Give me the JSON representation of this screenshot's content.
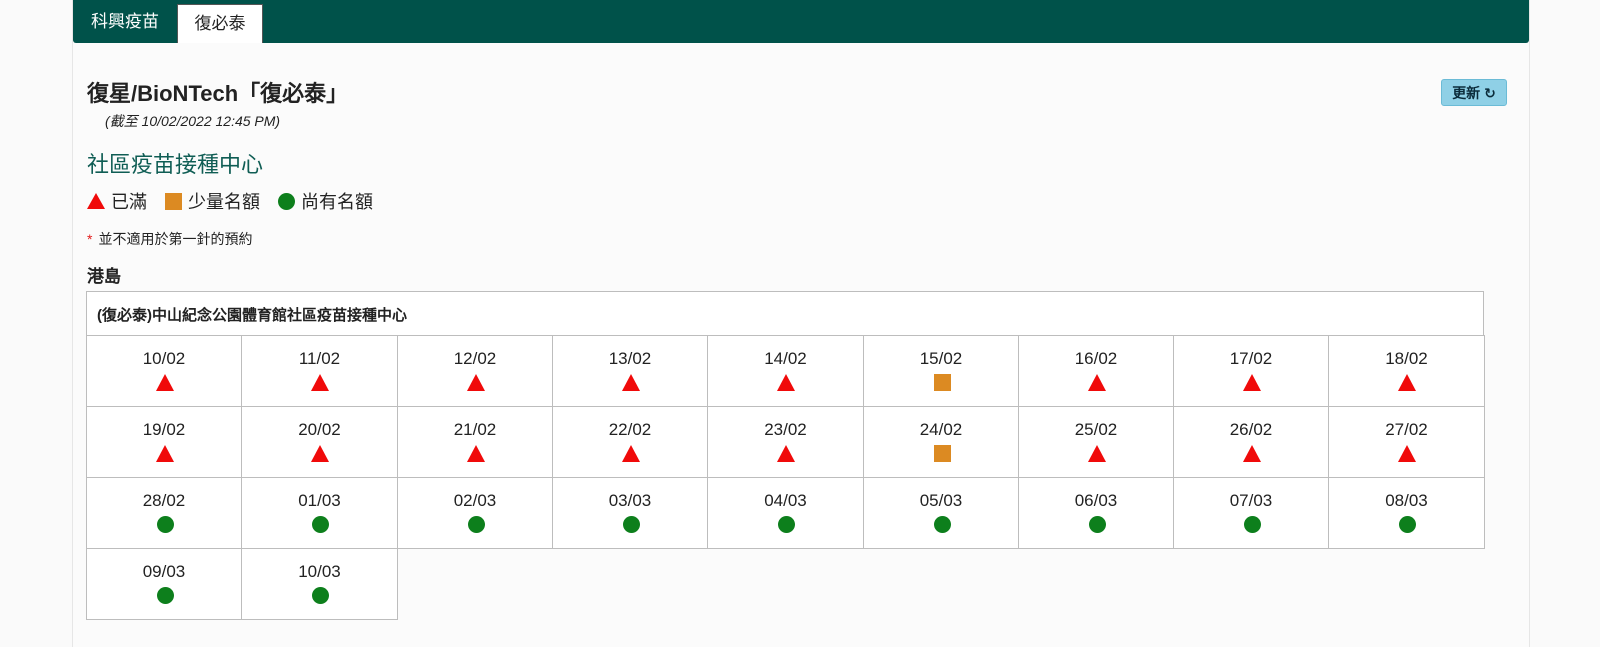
{
  "tabs": [
    {
      "label": "科興疫苗",
      "active": false
    },
    {
      "label": "復必泰",
      "active": true
    }
  ],
  "header": {
    "title": "復星/BioNTech「復必泰」",
    "as_of": "(截至 10/02/2022 12:45 PM)",
    "refresh_label": "更新 ↻"
  },
  "section_title": "社區疫苗接種中心",
  "legend": [
    {
      "icon": "triangle-icon",
      "label": "已滿",
      "color": "#f00a0a"
    },
    {
      "icon": "square-icon",
      "label": "少量名額",
      "color": "#dc8a22"
    },
    {
      "icon": "circle-icon",
      "label": "尚有名額",
      "color": "#0d7f1c"
    }
  ],
  "note": {
    "star": "*",
    "text": "並不適用於第一針的預約"
  },
  "district": "港島",
  "center": {
    "name": "(復必泰)中山紀念公園體育館社區疫苗接種中心",
    "slots": [
      {
        "date": "10/02",
        "status": "full"
      },
      {
        "date": "11/02",
        "status": "full"
      },
      {
        "date": "12/02",
        "status": "full"
      },
      {
        "date": "13/02",
        "status": "full"
      },
      {
        "date": "14/02",
        "status": "full"
      },
      {
        "date": "15/02",
        "status": "limited"
      },
      {
        "date": "16/02",
        "status": "full"
      },
      {
        "date": "17/02",
        "status": "full"
      },
      {
        "date": "18/02",
        "status": "full"
      },
      {
        "date": "19/02",
        "status": "full"
      },
      {
        "date": "20/02",
        "status": "full"
      },
      {
        "date": "21/02",
        "status": "full"
      },
      {
        "date": "22/02",
        "status": "full"
      },
      {
        "date": "23/02",
        "status": "full"
      },
      {
        "date": "24/02",
        "status": "limited"
      },
      {
        "date": "25/02",
        "status": "full"
      },
      {
        "date": "26/02",
        "status": "full"
      },
      {
        "date": "27/02",
        "status": "full"
      },
      {
        "date": "28/02",
        "status": "available"
      },
      {
        "date": "01/03",
        "status": "available"
      },
      {
        "date": "02/03",
        "status": "available"
      },
      {
        "date": "03/03",
        "status": "available"
      },
      {
        "date": "04/03",
        "status": "available"
      },
      {
        "date": "05/03",
        "status": "available"
      },
      {
        "date": "06/03",
        "status": "available"
      },
      {
        "date": "07/03",
        "status": "available"
      },
      {
        "date": "08/03",
        "status": "available"
      },
      {
        "date": "09/03",
        "status": "available"
      },
      {
        "date": "10/03",
        "status": "available"
      }
    ]
  }
}
